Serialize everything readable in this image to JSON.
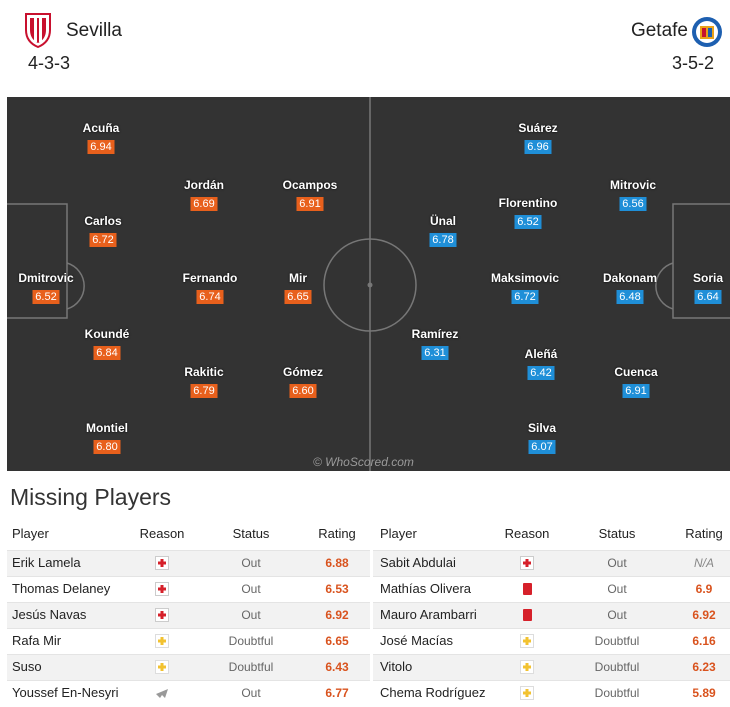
{
  "header": {
    "home": {
      "name": "Sevilla",
      "formation": "4-3-3"
    },
    "away": {
      "name": "Getafe",
      "formation": "3-5-2"
    }
  },
  "pitch": {
    "watermark": "© WhoScored.com",
    "home": [
      {
        "name": "Acuña",
        "rating": "6.94"
      },
      {
        "name": "Jordán",
        "rating": "6.69"
      },
      {
        "name": "Ocampos",
        "rating": "6.91"
      },
      {
        "name": "Carlos",
        "rating": "6.72"
      },
      {
        "name": "Dmitrovic",
        "rating": "6.52"
      },
      {
        "name": "Fernando",
        "rating": "6.74"
      },
      {
        "name": "Mir",
        "rating": "6.65"
      },
      {
        "name": "Koundé",
        "rating": "6.84"
      },
      {
        "name": "Rakitic",
        "rating": "6.79"
      },
      {
        "name": "Gómez",
        "rating": "6.60"
      },
      {
        "name": "Montiel",
        "rating": "6.80"
      }
    ],
    "away": [
      {
        "name": "Suárez",
        "rating": "6.96"
      },
      {
        "name": "Florentino",
        "rating": "6.52"
      },
      {
        "name": "Mitrovic",
        "rating": "6.56"
      },
      {
        "name": "Ünal",
        "rating": "6.78"
      },
      {
        "name": "Maksimovic",
        "rating": "6.72"
      },
      {
        "name": "Dakonam",
        "rating": "6.48"
      },
      {
        "name": "Soria",
        "rating": "6.64"
      },
      {
        "name": "Ramírez",
        "rating": "6.31"
      },
      {
        "name": "Aleñá",
        "rating": "6.42"
      },
      {
        "name": "Cuenca",
        "rating": "6.91"
      },
      {
        "name": "Silva",
        "rating": "6.07"
      }
    ]
  },
  "missing": {
    "title": "Missing Players",
    "home": {
      "columns": [
        "Player",
        "Reason",
        "Status",
        "Rating"
      ],
      "rows": [
        [
          "Erik Lamela",
          "Out",
          "6.88"
        ],
        [
          "Thomas Delaney",
          "Out",
          "6.53"
        ],
        [
          "Jesús Navas",
          "Out",
          "6.92"
        ],
        [
          "Rafa Mir",
          "Doubtful",
          "6.65"
        ],
        [
          "Suso",
          "Doubtful",
          "6.43"
        ],
        [
          "Youssef En-Nesyri",
          "Out",
          "6.77"
        ]
      ]
    },
    "away": {
      "columns": [
        "Player",
        "Reason",
        "Status",
        "Rating"
      ],
      "rows": [
        [
          "Sabit Abdulai",
          "Out",
          "N/A"
        ],
        [
          "Mathías Olivera",
          "Out",
          "6.9"
        ],
        [
          "Mauro Arambarri",
          "Out",
          "6.92"
        ],
        [
          "José Macías",
          "Doubtful",
          "6.16"
        ],
        [
          "Vitolo",
          "Doubtful",
          "6.23"
        ],
        [
          "Chema Rodríguez",
          "Doubtful",
          "5.89"
        ]
      ]
    }
  }
}
